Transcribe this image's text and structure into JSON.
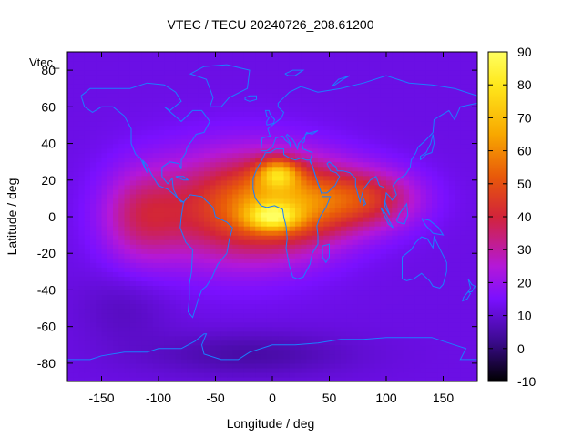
{
  "chart_data": {
    "type": "heatmap",
    "title": "VTEC / TECU 20240726_208.61200",
    "xlabel": "Longitude / deg",
    "ylabel": "Latitude / deg",
    "xlim": [
      -180,
      180
    ],
    "ylim": [
      -90,
      90
    ],
    "x_ticks": [
      -150,
      -100,
      -50,
      0,
      50,
      100,
      150
    ],
    "y_ticks": [
      -80,
      -60,
      -40,
      -20,
      0,
      20,
      40,
      60,
      80
    ],
    "colorbar": {
      "min": -10,
      "max": 90,
      "ticks": [
        -10,
        0,
        10,
        20,
        30,
        40,
        50,
        60,
        70,
        80,
        90
      ],
      "palette": [
        "#000000",
        "#3a0a8c",
        "#7a10ff",
        "#b418d8",
        "#d2243a",
        "#e8580a",
        "#f8a800",
        "#ffe81c",
        "#ffff60"
      ]
    },
    "legend": "Vtec_",
    "grid": false,
    "coastline_color": "#1a7fff",
    "description_values": {
      "background_high_lat_tecu": 10,
      "south_polar_min_tecu": 3,
      "equatorial_peak_tecu": 85,
      "peak_locations": [
        [
          10,
          25
        ],
        [
          0,
          0
        ]
      ]
    }
  }
}
